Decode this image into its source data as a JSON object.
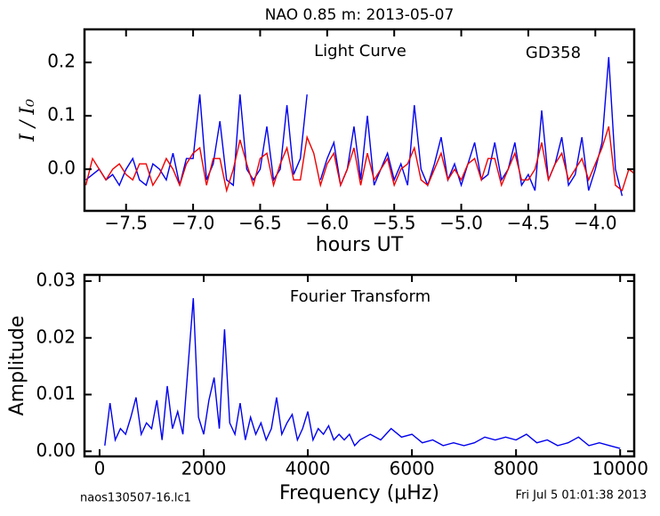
{
  "title": "NAO 0.85 m:  2013-05-07",
  "footer_left": "naos130507-16.lc1",
  "footer_right": "Fri Jul  5 01:01:38 2013",
  "chart_data": [
    {
      "type": "line",
      "annotations": [
        "Light Curve",
        "GD358"
      ],
      "x_label": "hours UT",
      "y_label": "I / I₀",
      "xlim": [
        -7.81,
        -3.71
      ],
      "ylim": [
        -0.078,
        0.262
      ],
      "xticks": [
        {
          "value": -7.5,
          "label": "−7.5"
        },
        {
          "value": -7.0,
          "label": "−7.0"
        },
        {
          "value": -6.5,
          "label": "−6.5"
        },
        {
          "value": -6.0,
          "label": "−6.0"
        },
        {
          "value": -5.5,
          "label": "−5.5"
        },
        {
          "value": -5.0,
          "label": "−5.0"
        },
        {
          "value": -4.5,
          "label": "−4.5"
        },
        {
          "value": -4.0,
          "label": "−4.0"
        }
      ],
      "yticks": [
        {
          "value": 0,
          "label": "0.0"
        },
        0.1,
        0.2
      ],
      "x": [
        -7.8,
        -7.75,
        -7.7,
        -7.65,
        -7.6,
        -7.55,
        -7.5,
        -7.45,
        -7.4,
        -7.35,
        -7.3,
        -7.25,
        -7.2,
        -7.15,
        -7.1,
        -7.05,
        -7.0,
        -6.95,
        -6.9,
        -6.85,
        -6.8,
        -6.75,
        -6.7,
        -6.65,
        -6.6,
        -6.55,
        -6.5,
        -6.45,
        -6.4,
        -6.35,
        -6.3,
        -6.25,
        -6.2,
        -6.15,
        -6.1,
        -6.05,
        -6.0,
        -5.95,
        -5.9,
        -5.85,
        -5.8,
        -5.75,
        -5.7,
        -5.65,
        -5.6,
        -5.55,
        -5.5,
        -5.45,
        -5.4,
        -5.35,
        -5.3,
        -5.25,
        -5.2,
        -5.15,
        -5.1,
        -5.05,
        -5.0,
        -4.95,
        -4.9,
        -4.85,
        -4.8,
        -4.75,
        -4.7,
        -4.65,
        -4.6,
        -4.55,
        -4.5,
        -4.45,
        -4.4,
        -4.35,
        -4.3,
        -4.25,
        -4.2,
        -4.15,
        -4.1,
        -4.05,
        -4.0,
        -3.95,
        -3.9,
        -3.85,
        -3.8,
        -3.75,
        -3.7
      ],
      "series": [
        {
          "color": "#0000ee",
          "values": [
            -0.02,
            -0.01,
            0.0,
            -0.02,
            -0.01,
            -0.03,
            0.0,
            0.02,
            -0.02,
            -0.03,
            0.01,
            0.0,
            -0.02,
            0.03,
            -0.03,
            0.02,
            0.02,
            0.14,
            -0.02,
            0.01,
            0.09,
            -0.02,
            -0.03,
            0.14,
            0.0,
            -0.02,
            0.0,
            0.08,
            -0.02,
            0.0,
            0.12,
            -0.01,
            0.02,
            0.14,
            null,
            -0.02,
            0.02,
            0.05,
            -0.03,
            0.0,
            0.08,
            -0.02,
            0.1,
            -0.03,
            0.0,
            0.03,
            -0.02,
            0.01,
            -0.03,
            0.12,
            0.0,
            -0.03,
            0.01,
            0.06,
            -0.02,
            0.01,
            -0.03,
            0.01,
            0.05,
            -0.02,
            -0.01,
            0.05,
            -0.02,
            0.0,
            0.05,
            -0.03,
            -0.01,
            -0.04,
            0.11,
            -0.02,
            0.01,
            0.06,
            -0.03,
            -0.01,
            0.06,
            -0.04,
            0.0,
            0.05,
            0.21,
            0.0,
            -0.05,
            null,
            null
          ]
        },
        {
          "color": "#ee0000",
          "values": [
            -0.03,
            0.02,
            0.0,
            -0.02,
            0.0,
            0.01,
            -0.01,
            -0.02,
            0.01,
            0.01,
            -0.03,
            -0.01,
            0.02,
            0.0,
            -0.03,
            0.01,
            0.03,
            0.04,
            -0.03,
            0.02,
            0.02,
            -0.04,
            0.0,
            0.055,
            0.01,
            -0.03,
            0.02,
            0.03,
            -0.03,
            0.01,
            0.04,
            -0.02,
            -0.02,
            0.06,
            0.03,
            -0.03,
            0.01,
            0.03,
            -0.03,
            0.0,
            0.04,
            -0.03,
            0.03,
            -0.02,
            0.0,
            0.02,
            -0.03,
            0.0,
            0.01,
            0.04,
            -0.02,
            -0.03,
            0.0,
            0.03,
            -0.02,
            0.0,
            -0.02,
            0.01,
            0.02,
            -0.02,
            0.02,
            0.02,
            -0.03,
            0.0,
            0.03,
            -0.02,
            -0.02,
            0.0,
            0.05,
            -0.02,
            0.01,
            0.03,
            -0.02,
            0.0,
            0.02,
            -0.02,
            0.01,
            0.04,
            0.08,
            -0.03,
            -0.04,
            0.0,
            -0.01
          ]
        }
      ]
    },
    {
      "type": "line",
      "annotations": [
        "Fourier Transform"
      ],
      "x_label": "Frequency (μHz)",
      "y_label": "Amplitude",
      "xlim": [
        -290,
        10270
      ],
      "ylim": [
        -0.0009,
        0.0311
      ],
      "xticks": [
        0,
        2000,
        4000,
        6000,
        8000,
        10000
      ],
      "yticks": [
        {
          "value": 0,
          "label": "0.00"
        },
        {
          "value": 0.01,
          "label": "0.01"
        },
        {
          "value": 0.02,
          "label": "0.02"
        },
        {
          "value": 0.03,
          "label": "0.03"
        }
      ],
      "x": [
        100,
        200,
        300,
        400,
        500,
        600,
        700,
        800,
        900,
        1000,
        1100,
        1200,
        1300,
        1400,
        1500,
        1600,
        1700,
        1800,
        1900,
        2000,
        2100,
        2200,
        2300,
        2400,
        2500,
        2600,
        2700,
        2800,
        2900,
        3000,
        3100,
        3200,
        3300,
        3400,
        3500,
        3600,
        3700,
        3800,
        3900,
        4000,
        4100,
        4200,
        4300,
        4400,
        4500,
        4600,
        4700,
        4800,
        4900,
        5000,
        5200,
        5400,
        5600,
        5800,
        6000,
        6200,
        6400,
        6600,
        6800,
        7000,
        7200,
        7400,
        7600,
        7800,
        8000,
        8200,
        8400,
        8600,
        8800,
        9000,
        9200,
        9400,
        9600,
        9800,
        10000
      ],
      "series": [
        {
          "color": "#0000ee",
          "values": [
            0.001,
            0.0085,
            0.002,
            0.004,
            0.003,
            0.006,
            0.0095,
            0.003,
            0.005,
            0.004,
            0.009,
            0.002,
            0.0115,
            0.004,
            0.007,
            0.003,
            0.015,
            0.027,
            0.006,
            0.003,
            0.009,
            0.013,
            0.004,
            0.0215,
            0.005,
            0.003,
            0.0085,
            0.002,
            0.006,
            0.003,
            0.005,
            0.002,
            0.004,
            0.0095,
            0.003,
            0.005,
            0.0065,
            0.002,
            0.004,
            0.007,
            0.002,
            0.004,
            0.003,
            0.0045,
            0.002,
            0.003,
            0.002,
            0.003,
            0.001,
            0.002,
            0.003,
            0.002,
            0.004,
            0.0025,
            0.003,
            0.0015,
            0.002,
            0.001,
            0.0015,
            0.001,
            0.0015,
            0.0025,
            0.002,
            0.0025,
            0.002,
            0.003,
            0.0015,
            0.002,
            0.001,
            0.0015,
            0.0025,
            0.001,
            0.0015,
            0.001,
            0.0005
          ]
        }
      ]
    }
  ]
}
